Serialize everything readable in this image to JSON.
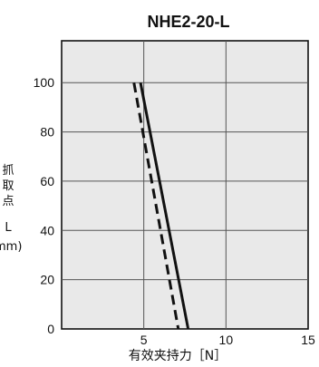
{
  "chart_data": {
    "type": "line",
    "title": "NHE2-20-L",
    "xlabel": "有效夹持力［N］",
    "ylabel_lines": [
      "抓",
      "取",
      "点",
      "",
      "L",
      "mm)"
    ],
    "xlim": [
      0,
      15
    ],
    "ylim": [
      0,
      117
    ],
    "x_ticks": [
      5,
      10,
      15
    ],
    "y_ticks": [
      0,
      20,
      40,
      60,
      80,
      100
    ],
    "x_gridlines": [
      5,
      10
    ],
    "y_gridlines": [
      20,
      40,
      60,
      80,
      100
    ],
    "grid": true,
    "background": "#e9e9e9",
    "series": [
      {
        "style": "solid",
        "color": "#111111",
        "points": [
          [
            4.8,
            100
          ],
          [
            7.7,
            0
          ]
        ]
      },
      {
        "style": "dashed",
        "color": "#111111",
        "points": [
          [
            4.4,
            100
          ],
          [
            7.1,
            0
          ]
        ]
      }
    ]
  }
}
